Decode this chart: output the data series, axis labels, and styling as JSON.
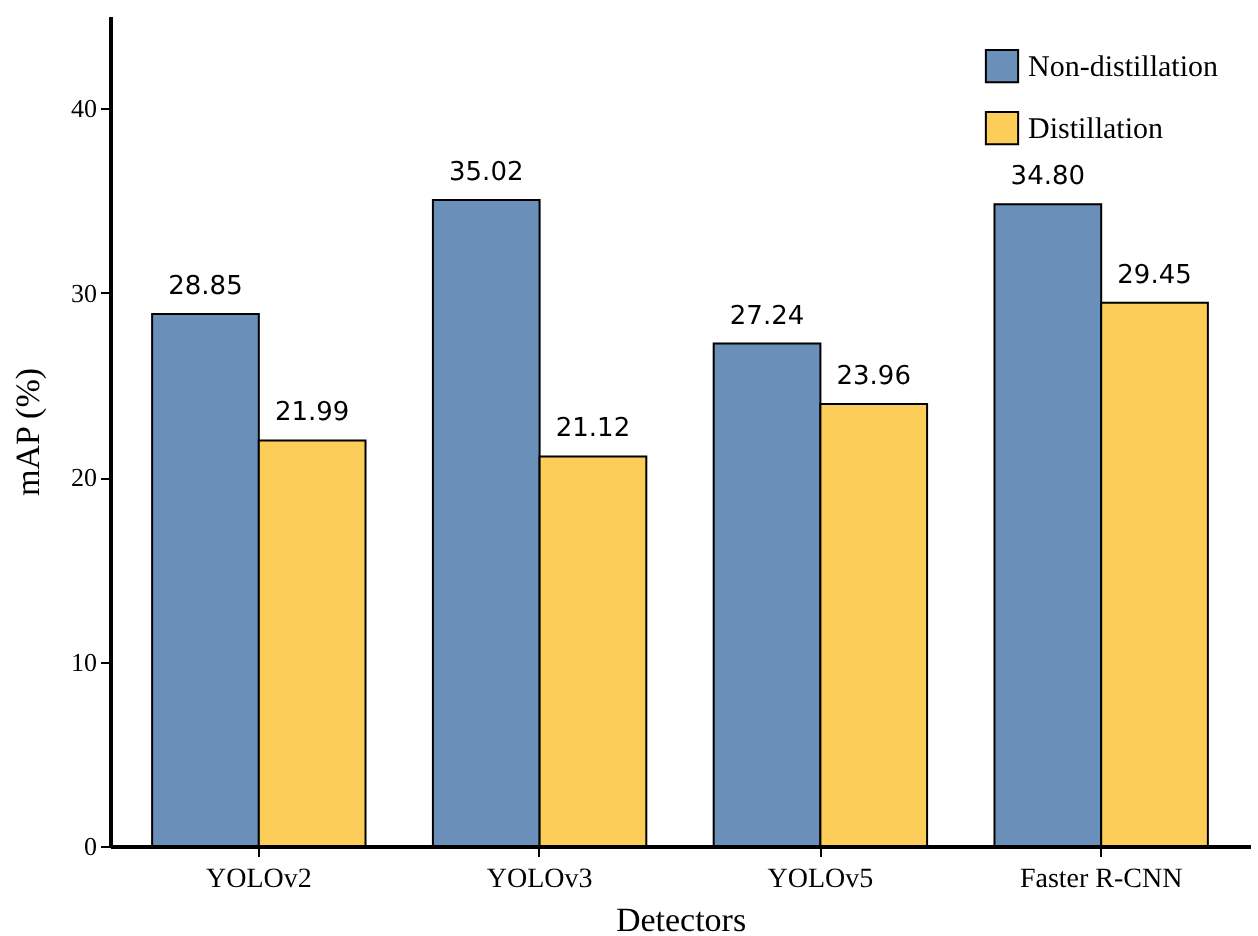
{
  "chart_data": {
    "type": "bar",
    "xlabel": "Detectors",
    "ylabel": "mAP (%)",
    "categories": [
      "YOLOv2",
      "YOLOv3",
      "YOLOv5",
      "Faster R-CNN"
    ],
    "series": [
      {
        "name": "Non-distillation",
        "color": "#6a8fb8",
        "values": [
          28.85,
          35.02,
          27.24,
          34.8
        ]
      },
      {
        "name": "Distillation",
        "color": "#fdcd5a",
        "values": [
          21.99,
          21.12,
          23.96,
          29.45
        ]
      }
    ],
    "value_labels": [
      [
        "28.85",
        "35.02",
        "27.24",
        "34.80"
      ],
      [
        "21.99",
        "21.12",
        "23.96",
        "29.45"
      ]
    ],
    "ylim": [
      0,
      45
    ],
    "yticks": [
      0,
      10,
      20,
      30,
      40
    ],
    "grid": false,
    "legend": "top right"
  }
}
